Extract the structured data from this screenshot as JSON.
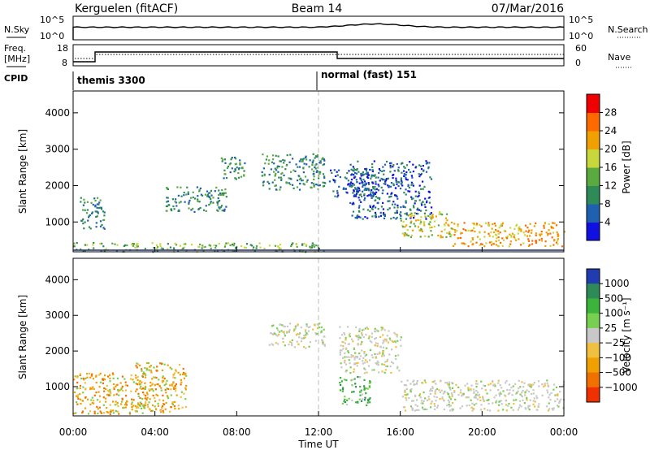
{
  "header": {
    "station": "Kerguelen (fitACF)",
    "beam": "Beam 14",
    "date": "07/Mar/2016"
  },
  "noise_panel": {
    "left_label": "N.Sky",
    "right_label": "N.Search",
    "right_legend_style": "dotted",
    "yticks": [
      "10^5",
      "10^0"
    ]
  },
  "freq_panel": {
    "left_label_1": "Freq.",
    "left_label_2": "[MHz]",
    "right_label": "Nave",
    "right_legend_style": "dotted",
    "left_ticks": [
      "18",
      "8"
    ],
    "right_ticks": [
      "60",
      "0"
    ]
  },
  "cpid_panel": {
    "label": "CPID",
    "modes": [
      {
        "name": "themis 3300"
      },
      {
        "name": "normal (fast) 151"
      }
    ],
    "switch_time_hours": 12.0
  },
  "chart_data": [
    {
      "type": "heatmap",
      "name": "power",
      "ylabel": "Slant Range [km]",
      "yticks": [
        "1000",
        "2000",
        "3000",
        "4000"
      ],
      "ylim": [
        180,
        4600
      ],
      "xlim_hours": [
        0,
        24
      ],
      "colorbar": {
        "label": "Power [dB]",
        "ticks": [
          "4",
          "8",
          "12",
          "16",
          "20",
          "24",
          "28"
        ],
        "colors": [
          "#1010e0",
          "#2060b0",
          "#2e8b57",
          "#5aaa40",
          "#c8d83c",
          "#f0a000",
          "#ff6a00",
          "#f00000"
        ]
      },
      "features": [
        {
          "t": [
            0.0,
            12.3
          ],
          "r": [
            200,
            450
          ],
          "level": 3
        },
        {
          "t": [
            0.3,
            1.5
          ],
          "r": [
            800,
            1700
          ],
          "level": 2
        },
        {
          "t": [
            4.5,
            7.5
          ],
          "r": [
            1300,
            2000
          ],
          "level": 2
        },
        {
          "t": [
            7.2,
            8.5
          ],
          "r": [
            2200,
            2800
          ],
          "level": 2
        },
        {
          "t": [
            9.2,
            12.3
          ],
          "r": [
            1900,
            2900
          ],
          "level": 2
        },
        {
          "t": [
            12.5,
            15.0
          ],
          "r": [
            1700,
            2500
          ],
          "level": 1
        },
        {
          "t": [
            13.5,
            17.5
          ],
          "r": [
            1100,
            2700
          ],
          "level": 1
        },
        {
          "t": [
            16.0,
            18.5
          ],
          "r": [
            600,
            1300
          ],
          "level": 4
        },
        {
          "t": [
            18.5,
            24.0
          ],
          "r": [
            350,
            1000
          ],
          "level": 5
        }
      ]
    },
    {
      "type": "heatmap",
      "name": "velocity",
      "ylabel": "Slant Range [km]",
      "yticks": [
        "1000",
        "2000",
        "3000",
        "4000"
      ],
      "ylim": [
        180,
        4600
      ],
      "xlim_hours": [
        0,
        24
      ],
      "colorbar": {
        "label": "Velocity [m s⁻¹]",
        "ticks": [
          "1000",
          "500",
          "100",
          "25",
          "−25",
          "−100",
          "−500",
          "−1000"
        ],
        "colors": [
          "#203cb0",
          "#2e8b57",
          "#3cb43c",
          "#78d050",
          "#c8c8c8",
          "#f0c040",
          "#f0a000",
          "#f07000",
          "#f03000"
        ]
      },
      "features": [
        {
          "t": [
            0.0,
            3.5
          ],
          "r": [
            250,
            1400
          ],
          "level": "orange"
        },
        {
          "t": [
            3.0,
            5.5
          ],
          "r": [
            300,
            1700
          ],
          "level": "orange"
        },
        {
          "t": [
            9.5,
            12.3
          ],
          "r": [
            2100,
            2800
          ],
          "level": "grey"
        },
        {
          "t": [
            13.0,
            16.0
          ],
          "r": [
            1400,
            2700
          ],
          "level": "grey"
        },
        {
          "t": [
            16.0,
            24.0
          ],
          "r": [
            350,
            1200
          ],
          "level": "grey"
        },
        {
          "t": [
            13.0,
            14.5
          ],
          "r": [
            500,
            1300
          ],
          "level": "green"
        }
      ]
    }
  ],
  "xaxis": {
    "ticks": [
      "00:00",
      "04:00",
      "08:00",
      "12:00",
      "16:00",
      "20:00",
      "00:00"
    ],
    "label": "Time UT"
  }
}
